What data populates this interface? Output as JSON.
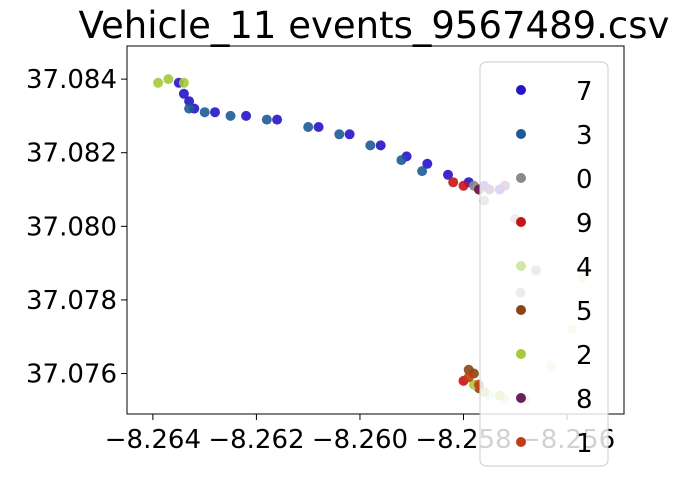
{
  "chart_data": {
    "type": "scatter",
    "title": "Vehicle_11 events_9567489.csv",
    "xlabel": "",
    "ylabel": "",
    "xlim": [
      -8.2645,
      -8.2549
    ],
    "ylim": [
      37.0749,
      37.0849
    ],
    "x_ticks": [
      -8.264,
      -8.262,
      -8.26,
      -8.258,
      -8.256
    ],
    "x_tick_labels": [
      "−8.264",
      "−8.262",
      "−8.260",
      "−8.258",
      "−8.256"
    ],
    "y_ticks": [
      37.076,
      37.078,
      37.08,
      37.082,
      37.084
    ],
    "y_tick_labels": [
      "37.076",
      "37.078",
      "37.080",
      "37.082",
      "37.084"
    ],
    "grid": false,
    "legend_position": "right",
    "legend": [
      {
        "label": "7",
        "color": "#2614c8"
      },
      {
        "label": "3",
        "color": "#1d5b96"
      },
      {
        "label": "0",
        "color": "#8a8a8a"
      },
      {
        "label": "9",
        "color": "#c81414"
      },
      {
        "label": "4",
        "color": "#cfe8a8"
      },
      {
        "label": "5",
        "color": "#8b4513"
      },
      {
        "label": "2",
        "color": "#a6c93a"
      },
      {
        "label": "8",
        "color": "#6b1f5f"
      },
      {
        "label": "1",
        "color": "#c43c14"
      }
    ],
    "series": [
      {
        "name": "7",
        "color": "#2614c8",
        "x": [
          -8.2635,
          -8.2634,
          -8.2633,
          -8.2632,
          -8.2628,
          -8.2622,
          -8.2616,
          -8.2608,
          -8.2602,
          -8.2596,
          -8.2591,
          -8.2587,
          -8.2583,
          -8.2579,
          -8.2576,
          -8.2573
        ],
        "y": [
          37.0839,
          37.0836,
          37.0834,
          37.0832,
          37.0831,
          37.083,
          37.0829,
          37.0827,
          37.0825,
          37.0822,
          37.0819,
          37.0817,
          37.0814,
          37.0812,
          37.0811,
          37.081
        ]
      },
      {
        "name": "3",
        "color": "#1d5b96",
        "x": [
          -8.2633,
          -8.263,
          -8.2625,
          -8.2618,
          -8.261,
          -8.2604,
          -8.2598,
          -8.2592,
          -8.2588
        ],
        "y": [
          37.0832,
          37.0831,
          37.083,
          37.0829,
          37.0827,
          37.0825,
          37.0822,
          37.0818,
          37.0815
        ]
      },
      {
        "name": "0",
        "color": "#8a8a8a",
        "x": [
          -8.2578,
          -8.2576,
          -8.257,
          -8.2566,
          -8.2569
        ],
        "y": [
          37.0811,
          37.0807,
          37.0802,
          37.0788,
          37.0782
        ]
      },
      {
        "name": "9",
        "color": "#c81414",
        "x": [
          -8.2582,
          -8.258,
          -8.2577,
          -8.258
        ],
        "y": [
          37.0812,
          37.0811,
          37.081,
          37.0758
        ]
      },
      {
        "name": "4",
        "color": "#cfe8a8",
        "x": [
          -8.2575,
          -8.2572,
          -8.2568,
          -8.2563,
          -8.2559,
          -8.2557
        ],
        "y": [
          37.0754,
          37.0753,
          37.0753,
          37.0762,
          37.0772,
          37.0786
        ]
      },
      {
        "name": "5",
        "color": "#8b4513",
        "x": [
          -8.2579,
          -8.2578,
          -8.2577
        ],
        "y": [
          37.0761,
          37.076,
          37.0756
        ]
      },
      {
        "name": "2",
        "color": "#a6c93a",
        "x": [
          -8.2639,
          -8.2637,
          -8.2634,
          -8.2578,
          -8.2576,
          -8.2573
        ],
        "y": [
          37.0839,
          37.084,
          37.0839,
          37.0757,
          37.0755,
          37.0754
        ]
      },
      {
        "name": "8",
        "color": "#6b1f5f",
        "x": [
          -8.2577,
          -8.2575,
          -8.2572
        ],
        "y": [
          37.081,
          37.081,
          37.0811
        ]
      },
      {
        "name": "1",
        "color": "#c43c14",
        "x": [
          -8.2579,
          -8.2577
        ],
        "y": [
          37.0759,
          37.0757
        ]
      }
    ]
  }
}
